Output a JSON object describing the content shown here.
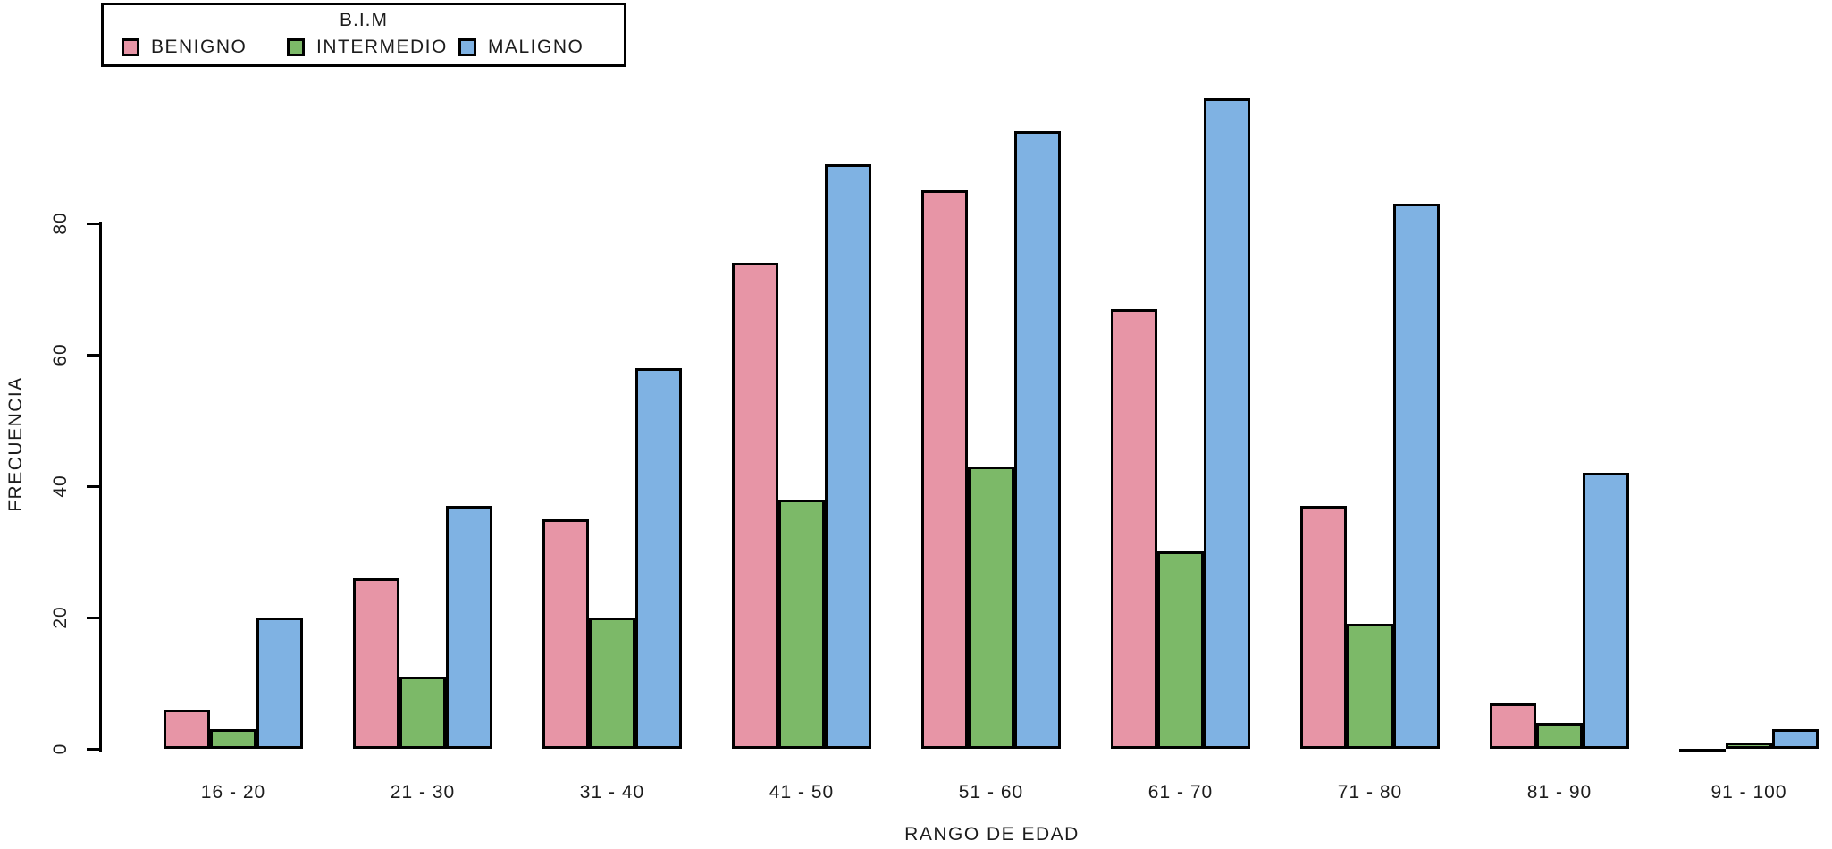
{
  "chart_data": {
    "type": "bar",
    "title": "",
    "legend_title": "B.I.M",
    "legend_position": "top-left",
    "xlabel": "RANGO DE EDAD",
    "ylabel": "FRECUENCIA",
    "categories": [
      "16 - 20",
      "21 - 30",
      "31 - 40",
      "41 - 50",
      "51 - 60",
      "61 - 70",
      "71 - 80",
      "81 - 90",
      "91 - 100"
    ],
    "series": [
      {
        "name": "BENIGNO",
        "color": "#E795A6",
        "values": [
          6,
          26,
          35,
          74,
          85,
          67,
          37,
          7,
          0
        ]
      },
      {
        "name": "INTERMEDIO",
        "color": "#7CB968",
        "values": [
          3,
          11,
          20,
          38,
          43,
          30,
          19,
          4,
          1
        ]
      },
      {
        "name": "MALIGNO",
        "color": "#7FB2E3",
        "values": [
          20,
          37,
          58,
          89,
          94,
          99,
          83,
          42,
          3
        ]
      }
    ],
    "ylim": [
      0,
      100
    ],
    "yticks": [
      0,
      20,
      40,
      60,
      80
    ],
    "grid": false,
    "bar_border_color": "#000000",
    "background_color": "#FFFFFF"
  }
}
